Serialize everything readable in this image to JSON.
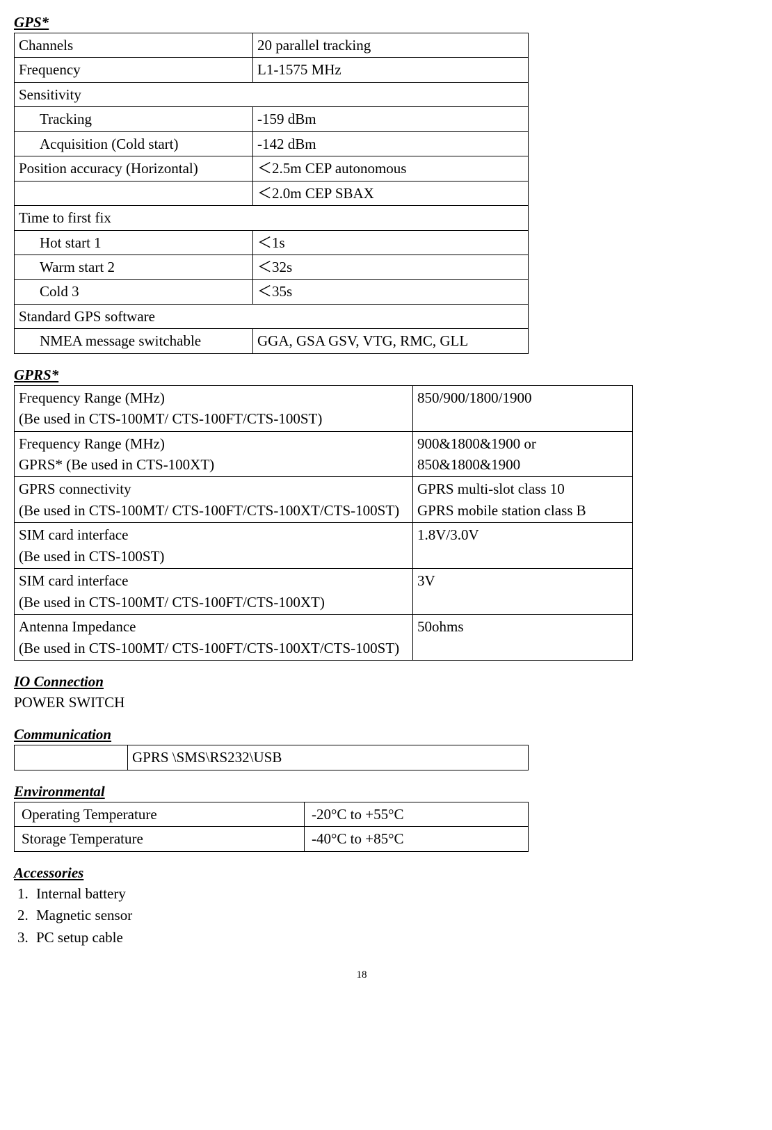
{
  "gps": {
    "heading": "GPS*",
    "rows": [
      {
        "label": "Channels",
        "value": "20 parallel tracking",
        "indent": false,
        "span": false
      },
      {
        "label": "Frequency",
        "value": "L1-1575 MHz",
        "indent": false,
        "span": false
      },
      {
        "label": "Sensitivity",
        "value": "",
        "indent": false,
        "span": true
      },
      {
        "label": "Tracking",
        "value": "-159 dBm",
        "indent": true,
        "span": false
      },
      {
        "label": "Acquisition (Cold start)",
        "value": "-142 dBm",
        "indent": true,
        "span": false
      },
      {
        "label": "Position accuracy (Horizontal)",
        "value": "＜2.5m CEP autonomous",
        "indent": false,
        "span": false
      },
      {
        "label": "",
        "value": "＜2.0m CEP SBAX",
        "indent": false,
        "span": false
      },
      {
        "label": "Time to first fix",
        "value": "",
        "indent": false,
        "span": true
      },
      {
        "label": "Hot start 1",
        "value": "＜1s",
        "indent": true,
        "span": false
      },
      {
        "label": "Warm start 2",
        "value": "＜32s",
        "indent": true,
        "span": false
      },
      {
        "label": "Cold 3",
        "value": "＜35s",
        "indent": true,
        "span": false
      },
      {
        "label": "Standard GPS software",
        "value": "",
        "indent": false,
        "span": true
      },
      {
        "label": "NMEA message switchable",
        "value": "GGA, GSA GSV, VTG, RMC, GLL",
        "indent": true,
        "span": false
      }
    ]
  },
  "gprs": {
    "heading": "GPRS*",
    "rows": [
      {
        "label": "Frequency Range (MHz)\n(Be used in CTS-100MT/ CTS-100FT/CTS-100ST)",
        "value": "850/900/1800/1900"
      },
      {
        "label": "Frequency Range (MHz)\nGPRS* (Be used in CTS-100XT)",
        "value": "900&1800&1900 or 850&1800&1900"
      },
      {
        "label": "GPRS connectivity\n(Be used in CTS-100MT/ CTS-100FT/CTS-100XT/CTS-100ST)",
        "value": "GPRS multi-slot class 10\nGPRS mobile station class B"
      },
      {
        "label": "SIM card interface\n(Be used in CTS-100ST)",
        "value": "1.8V/3.0V"
      },
      {
        "label": "SIM card interface\n(Be used in CTS-100MT/ CTS-100FT/CTS-100XT)",
        "value": "3V"
      },
      {
        "label": "Antenna Impedance\n(Be used in CTS-100MT/ CTS-100FT/CTS-100XT/CTS-100ST)",
        "value": "50ohms"
      }
    ]
  },
  "io": {
    "heading": "IO Connection",
    "text": "POWER SWITCH"
  },
  "comm": {
    "heading": "Communication",
    "col1": "",
    "col2": "GPRS \\SMS\\RS232\\USB"
  },
  "env": {
    "heading": "Environmental",
    "rows": [
      {
        "label": "Operating Temperature",
        "value": "-20°C to +55°C"
      },
      {
        "label": "Storage Temperature",
        "value": "-40°C to +85°C"
      }
    ]
  },
  "accessories": {
    "heading": "Accessories",
    "items": [
      "Internal battery",
      "Magnetic sensor",
      "PC setup cable"
    ]
  },
  "page_number": "18"
}
